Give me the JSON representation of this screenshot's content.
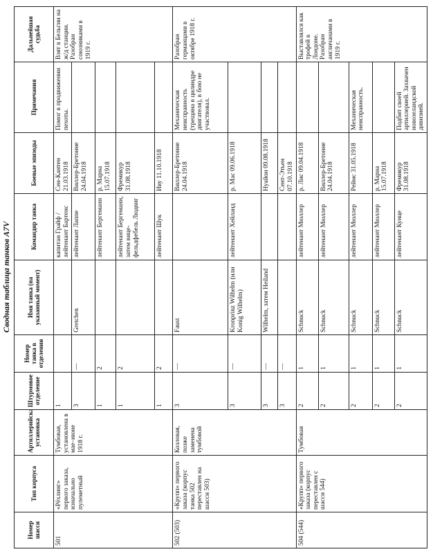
{
  "title": "Сводная таблица танков A7V",
  "headers": [
    "Номер шасси",
    "Тип корпуса",
    "Артиллерийская установка",
    "Штурмовое отделение",
    "Номер танка в отделении",
    "Имя танка (на указанный момент)",
    "Командир танка",
    "Боевые эпизоды",
    "Примечания",
    "Дальнейшая судьба"
  ],
  "rows": [
    {
      "chassis": "501",
      "hull": "«Рёхлинг» первого заказа, изначально пулеметный",
      "gun": "Тумбовая, установлена в мае–июне 1918 г.",
      "fate": "Взят в Бельгии на ж/д станции. Разобран союзниками в 1919 г.",
      "entries": [
        [
          "1",
          null,
          null,
          "капитан Грайф / лейтенант Бартенс",
          "Сен-Кантен 21.03.1918",
          "Помог в продвижении пехоты."
        ],
        [
          "3",
          "—",
          "Gretchen",
          "лейтенант Лаппе",
          "Виллер-Бретонне 24.04.1918",
          null
        ],
        [
          "1",
          "2",
          null,
          "лейтенант Бергеманн",
          "р. Марна 15.07.1918",
          null
        ],
        [
          "1",
          "2",
          null,
          "лейтенант Бергеманн, затем вице-фельдфебель Людвиг",
          "Фремикур 31.08.1918",
          null
        ],
        [
          "1",
          "2",
          null,
          "лейтенант Шук",
          "Иву 11.10.1918",
          null
        ]
      ]
    },
    {
      "chassis": "502 (503)",
      "hull": "«Крупп» первого заказа (корпус танка 502 переставлен на шасси 503)",
      "gun": "Козловая, позже заменена тумбовой",
      "fate": "Разобран германцами в октябре 1918 г.",
      "entries": [
        [
          "3",
          "—",
          "Faust",
          null,
          "Виллер-Бретонне 24.04.1918",
          "Механическая неисправность (трещина в цилиндре двигателя), в бою не участвовал."
        ],
        [
          "3",
          "—",
          "Kronprinz Wilhelm (или Konig Wilhelm)",
          "лейтенант Хейланд",
          "р. Мас 09.06.1918",
          null
        ],
        [
          "3",
          "—",
          "Wilhelm, затем Heiland",
          null,
          "Нуайон 09.08.1918",
          null
        ],
        [
          "3",
          "—",
          null,
          null,
          "Сент-Этьен 07.10.1918",
          null
        ]
      ]
    },
    {
      "chassis": "504 (544)",
      "hull": "«Крупп» первого заказа (корпус переставлен с шасси 544)",
      "gun": "Тумбовая",
      "fate": "Выставлялся как трофей в Лондоне. Разобран англичанами в 1919 г.",
      "entries": [
        [
          "2",
          "1",
          "Schnuck",
          "лейтенант Мюллер",
          "р. Лис 09.04.1918",
          null
        ],
        [
          "2",
          "1",
          "Schnuck",
          "лейтенант Мюллер",
          "Виллер-Бретонне 24.04.1918",
          null
        ],
        [
          "2",
          "1",
          "Schnuck",
          "лейтенант Мюллер",
          "Реймс 31.05.1918",
          "Механическая неисправность."
        ],
        [
          "2",
          "1",
          "Schnuck",
          "лейтенант Мюллер",
          "р. Марна 15.07.1918",
          null
        ],
        [
          "2",
          "1",
          "Schnuck",
          "лейтенант Кунце",
          "Фремикур 31.08.1918",
          "Подбит своей артиллерией. Захвачен новозеландской дивизией."
        ]
      ]
    }
  ]
}
